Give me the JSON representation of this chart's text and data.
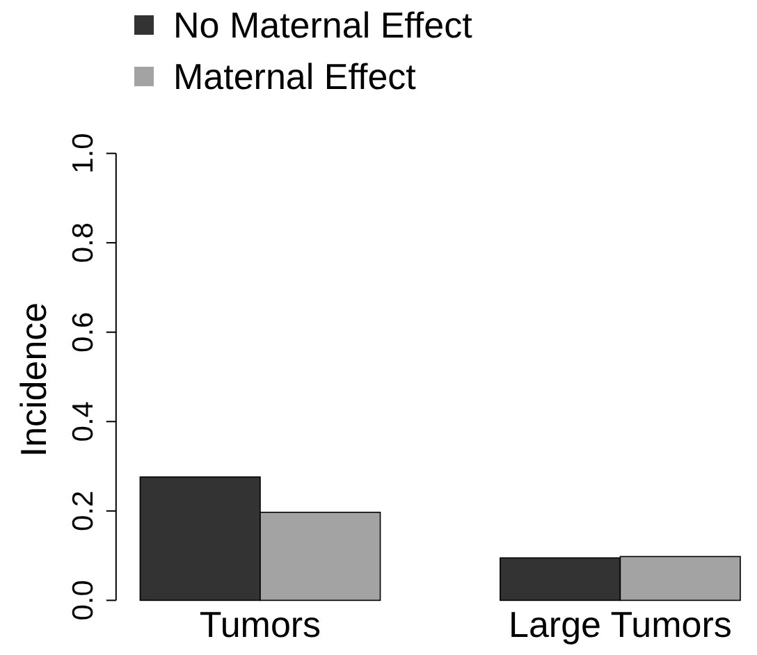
{
  "chart_data": {
    "type": "bar",
    "ylabel": "Incidence",
    "categories": [
      "Tumors",
      "Large Tumors"
    ],
    "series": [
      {
        "name": "No Maternal Effect",
        "color": "#333333",
        "values": [
          0.276,
          0.095
        ]
      },
      {
        "name": "Maternal Effect",
        "color": "#a3a3a3",
        "values": [
          0.197,
          0.098
        ]
      }
    ],
    "ylim": [
      0,
      1
    ],
    "yticks": [
      {
        "value": 0,
        "label": "0.0"
      },
      {
        "value": 0.2,
        "label": "0.2"
      },
      {
        "value": 0.4,
        "label": "0.4"
      },
      {
        "value": 0.6,
        "label": "0.6"
      },
      {
        "value": 0.8,
        "label": "0.8"
      },
      {
        "value": 1,
        "label": "1.0"
      }
    ],
    "legend": "top left",
    "grid": false
  }
}
